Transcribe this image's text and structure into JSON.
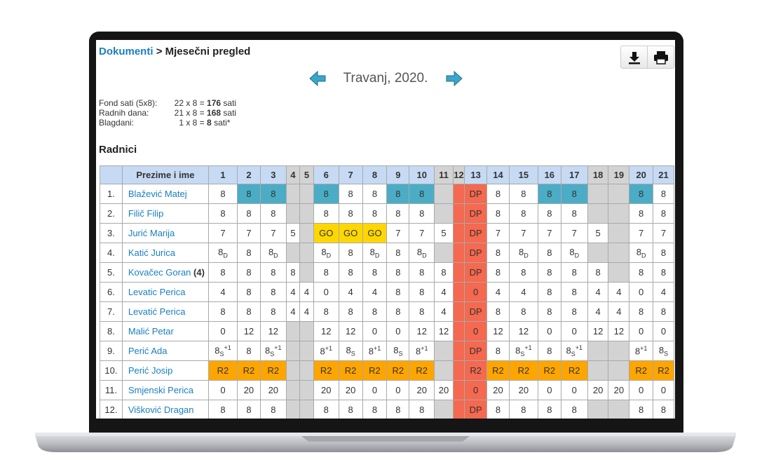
{
  "breadcrumb": {
    "link": "Dokumenti",
    "separator": ">",
    "current": "Mjesečni pregled"
  },
  "month": "Travanj, 2020.",
  "info": [
    {
      "label": "Fond sati (5x8):",
      "count": "22",
      "mult": "x 8 =",
      "total": "176",
      "unit": "sati"
    },
    {
      "label": "Radnih dana:",
      "count": "21",
      "mult": "x 8 =",
      "total": "168",
      "unit": "sati"
    },
    {
      "label": "Blagdani:",
      "count": "1",
      "mult": "x 8 =",
      "total": "8",
      "unit": "sati*"
    }
  ],
  "heading": "Radnici",
  "colors": {
    "header": "#c6daf4",
    "weekend": "#d3d3d3",
    "holiday": "#f4694f"
  },
  "table": {
    "name_header": "Prezime i ime",
    "days": [
      {
        "label": "1"
      },
      {
        "label": "2"
      },
      {
        "label": "3"
      },
      {
        "label": "4",
        "weekend": true
      },
      {
        "label": "5",
        "weekend": true
      },
      {
        "label": "6"
      },
      {
        "label": "7"
      },
      {
        "label": "8"
      },
      {
        "label": "9"
      },
      {
        "label": "10"
      },
      {
        "label": "11",
        "weekend": true
      },
      {
        "label": "12",
        "weekend": true,
        "holiday": true
      },
      {
        "label": "13",
        "holiday": true
      },
      {
        "label": "14"
      },
      {
        "label": "15"
      },
      {
        "label": "16"
      },
      {
        "label": "17"
      },
      {
        "label": "18",
        "weekend": true
      },
      {
        "label": "19",
        "weekend": true
      },
      {
        "label": "20"
      },
      {
        "label": "21"
      }
    ],
    "rows": [
      {
        "no": "1.",
        "name": "Blažević Matej",
        "cells": [
          "8",
          {
            "text": "8",
            "color": "#4bacc6"
          },
          {
            "text": "8",
            "color": "#4bacc6"
          },
          null,
          null,
          {
            "text": "8",
            "color": "#4bacc6"
          },
          "8",
          "8",
          {
            "text": "8",
            "color": "#4bacc6"
          },
          {
            "text": "8",
            "color": "#4bacc6"
          },
          null,
          null,
          "DP",
          "8",
          "8",
          {
            "text": "8",
            "color": "#4bacc6"
          },
          {
            "text": "8",
            "color": "#4bacc6"
          },
          null,
          null,
          {
            "text": "8",
            "color": "#4bacc6"
          },
          "8"
        ]
      },
      {
        "no": "2.",
        "name": "Filič Filip",
        "cells": [
          "8",
          "8",
          "8",
          null,
          null,
          "8",
          "8",
          "8",
          "8",
          "8",
          null,
          null,
          "DP",
          "8",
          "8",
          "8",
          "8",
          null,
          null,
          "8",
          "8"
        ]
      },
      {
        "no": "3.",
        "name": "Jurić Marija",
        "cells": [
          "7",
          "7",
          "7",
          "5",
          null,
          {
            "text": "GO",
            "color": "#ffd700"
          },
          {
            "text": "GO",
            "color": "#ffd700"
          },
          {
            "text": "GO",
            "color": "#ffd700"
          },
          "7",
          "7",
          "5",
          null,
          "DP",
          "7",
          "7",
          "7",
          "7",
          "5",
          null,
          "7",
          "7"
        ]
      },
      {
        "no": "4.",
        "name": "Katić Jurica",
        "cells": [
          {
            "text": "8",
            "sub": "D"
          },
          "8",
          {
            "text": "8",
            "sub": "D"
          },
          null,
          null,
          {
            "text": "8",
            "sub": "D"
          },
          "8",
          {
            "text": "8",
            "sub": "D"
          },
          "8",
          {
            "text": "8",
            "sub": "D"
          },
          null,
          null,
          "DP",
          "8",
          {
            "text": "8",
            "sub": "D"
          },
          "8",
          {
            "text": "8",
            "sub": "D"
          },
          null,
          null,
          {
            "text": "8",
            "sub": "D"
          },
          "8"
        ]
      },
      {
        "no": "5.",
        "name": "Kovačec Goran",
        "extra": "(4)",
        "cells": [
          "8",
          "8",
          "8",
          "8",
          null,
          "8",
          "8",
          "8",
          "8",
          "8",
          "8",
          null,
          "DP",
          "8",
          "8",
          "8",
          "8",
          "8",
          null,
          "8",
          "8"
        ]
      },
      {
        "no": "6.",
        "name": "Levatic Perica",
        "cells": [
          "4",
          "8",
          "8",
          "4",
          "4",
          "0",
          "4",
          "4",
          "8",
          "8",
          "4",
          null,
          "0",
          "4",
          "4",
          "8",
          "8",
          "4",
          "4",
          "0",
          "4"
        ]
      },
      {
        "no": "7.",
        "name": "Levatić Perica",
        "cells": [
          "8",
          "8",
          "8",
          "4",
          "4",
          "8",
          "8",
          "8",
          "8",
          "8",
          "4",
          null,
          "DP",
          "8",
          "8",
          "8",
          "8",
          "4",
          "4",
          "8",
          "8"
        ]
      },
      {
        "no": "8.",
        "name": "Malić Petar",
        "cells": [
          "0",
          "12",
          "12",
          null,
          null,
          "12",
          "12",
          "0",
          "0",
          "12",
          "12",
          null,
          "0",
          "12",
          "12",
          "0",
          "0",
          "12",
          "12",
          "0",
          "0"
        ]
      },
      {
        "no": "9.",
        "name": "Perić Ada",
        "cells": [
          {
            "text": "8",
            "sub": "S",
            "sup": "+1"
          },
          "8",
          {
            "text": "8",
            "sub": "S",
            "sup": "+1"
          },
          null,
          null,
          {
            "text": "8",
            "sup": "+1"
          },
          {
            "text": "8",
            "sub": "S"
          },
          {
            "text": "8",
            "sup": "+1"
          },
          {
            "text": "8",
            "sub": "S"
          },
          {
            "text": "8",
            "sup": "+1"
          },
          null,
          null,
          "DP",
          "8",
          {
            "text": "8",
            "sub": "S",
            "sup": "+1"
          },
          "8",
          {
            "text": "8",
            "sub": "S",
            "sup": "+1"
          },
          null,
          null,
          {
            "text": "8",
            "sup": "+1"
          },
          {
            "text": "8",
            "sub": "S"
          }
        ]
      },
      {
        "no": "10.",
        "name": "Perić Josip",
        "cells": [
          {
            "text": "R2",
            "color": "#ffa500"
          },
          {
            "text": "R2",
            "color": "#ffa500"
          },
          {
            "text": "R2",
            "color": "#ffa500"
          },
          null,
          null,
          {
            "text": "R2",
            "color": "#ffa500"
          },
          {
            "text": "R2",
            "color": "#ffa500"
          },
          {
            "text": "R2",
            "color": "#ffa500"
          },
          {
            "text": "R2",
            "color": "#ffa500"
          },
          {
            "text": "R2",
            "color": "#ffa500"
          },
          null,
          null,
          "R2",
          {
            "text": "R2",
            "color": "#ffa500"
          },
          {
            "text": "R2",
            "color": "#ffa500"
          },
          {
            "text": "R2",
            "color": "#ffa500"
          },
          {
            "text": "R2",
            "color": "#ffa500"
          },
          null,
          null,
          {
            "text": "R2",
            "color": "#ffa500"
          },
          {
            "text": "R2",
            "color": "#ffa500"
          }
        ]
      },
      {
        "no": "11.",
        "name": "Smjenski Perica",
        "cells": [
          "0",
          "20",
          "20",
          null,
          null,
          "20",
          "20",
          "0",
          "0",
          "20",
          "20",
          null,
          "0",
          "20",
          "20",
          "0",
          "0",
          "20",
          "20",
          "0",
          "0"
        ]
      },
      {
        "no": "12.",
        "name": "Višković Dragan",
        "cells": [
          "8",
          "8",
          "8",
          null,
          null,
          "8",
          "8",
          "8",
          "8",
          "8",
          null,
          null,
          "DP",
          "8",
          "8",
          "8",
          "8",
          null,
          null,
          "8",
          "8"
        ]
      }
    ]
  }
}
